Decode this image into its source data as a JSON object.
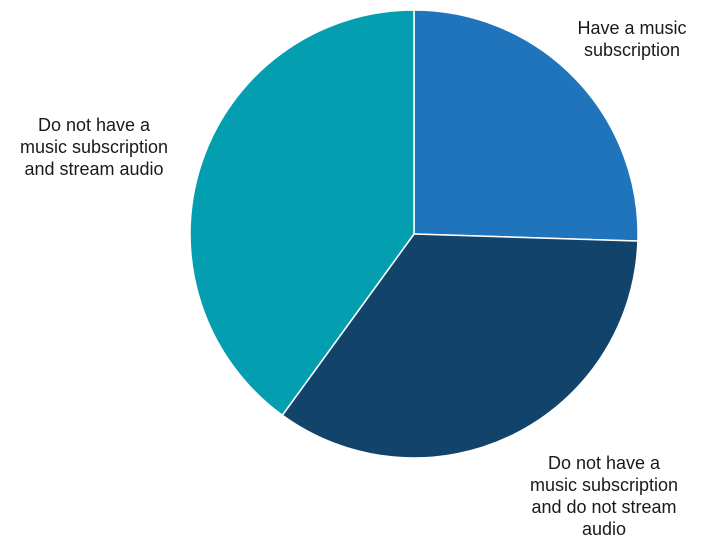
{
  "chart_data": {
    "type": "pie",
    "title": "",
    "slices": [
      {
        "label": "Have a music subscription",
        "label_lines": [
          "Have a music",
          "subscription"
        ],
        "value": 25.5,
        "color": "#1f74bb"
      },
      {
        "label": "Do not have a music subscription and do not stream audio",
        "label_lines": [
          "Do not have a",
          "music subscription",
          "and do not stream",
          "audio"
        ],
        "value": 34.5,
        "color": "#11436b"
      },
      {
        "label": "Do not have a music subscription and stream audio",
        "label_lines": [
          "Do not have a",
          "music subscription",
          "and stream audio"
        ],
        "value": 40,
        "color": "#049eb1"
      }
    ],
    "start_angle": "12 o'clock",
    "direction": "clockwise",
    "legend": "none"
  }
}
